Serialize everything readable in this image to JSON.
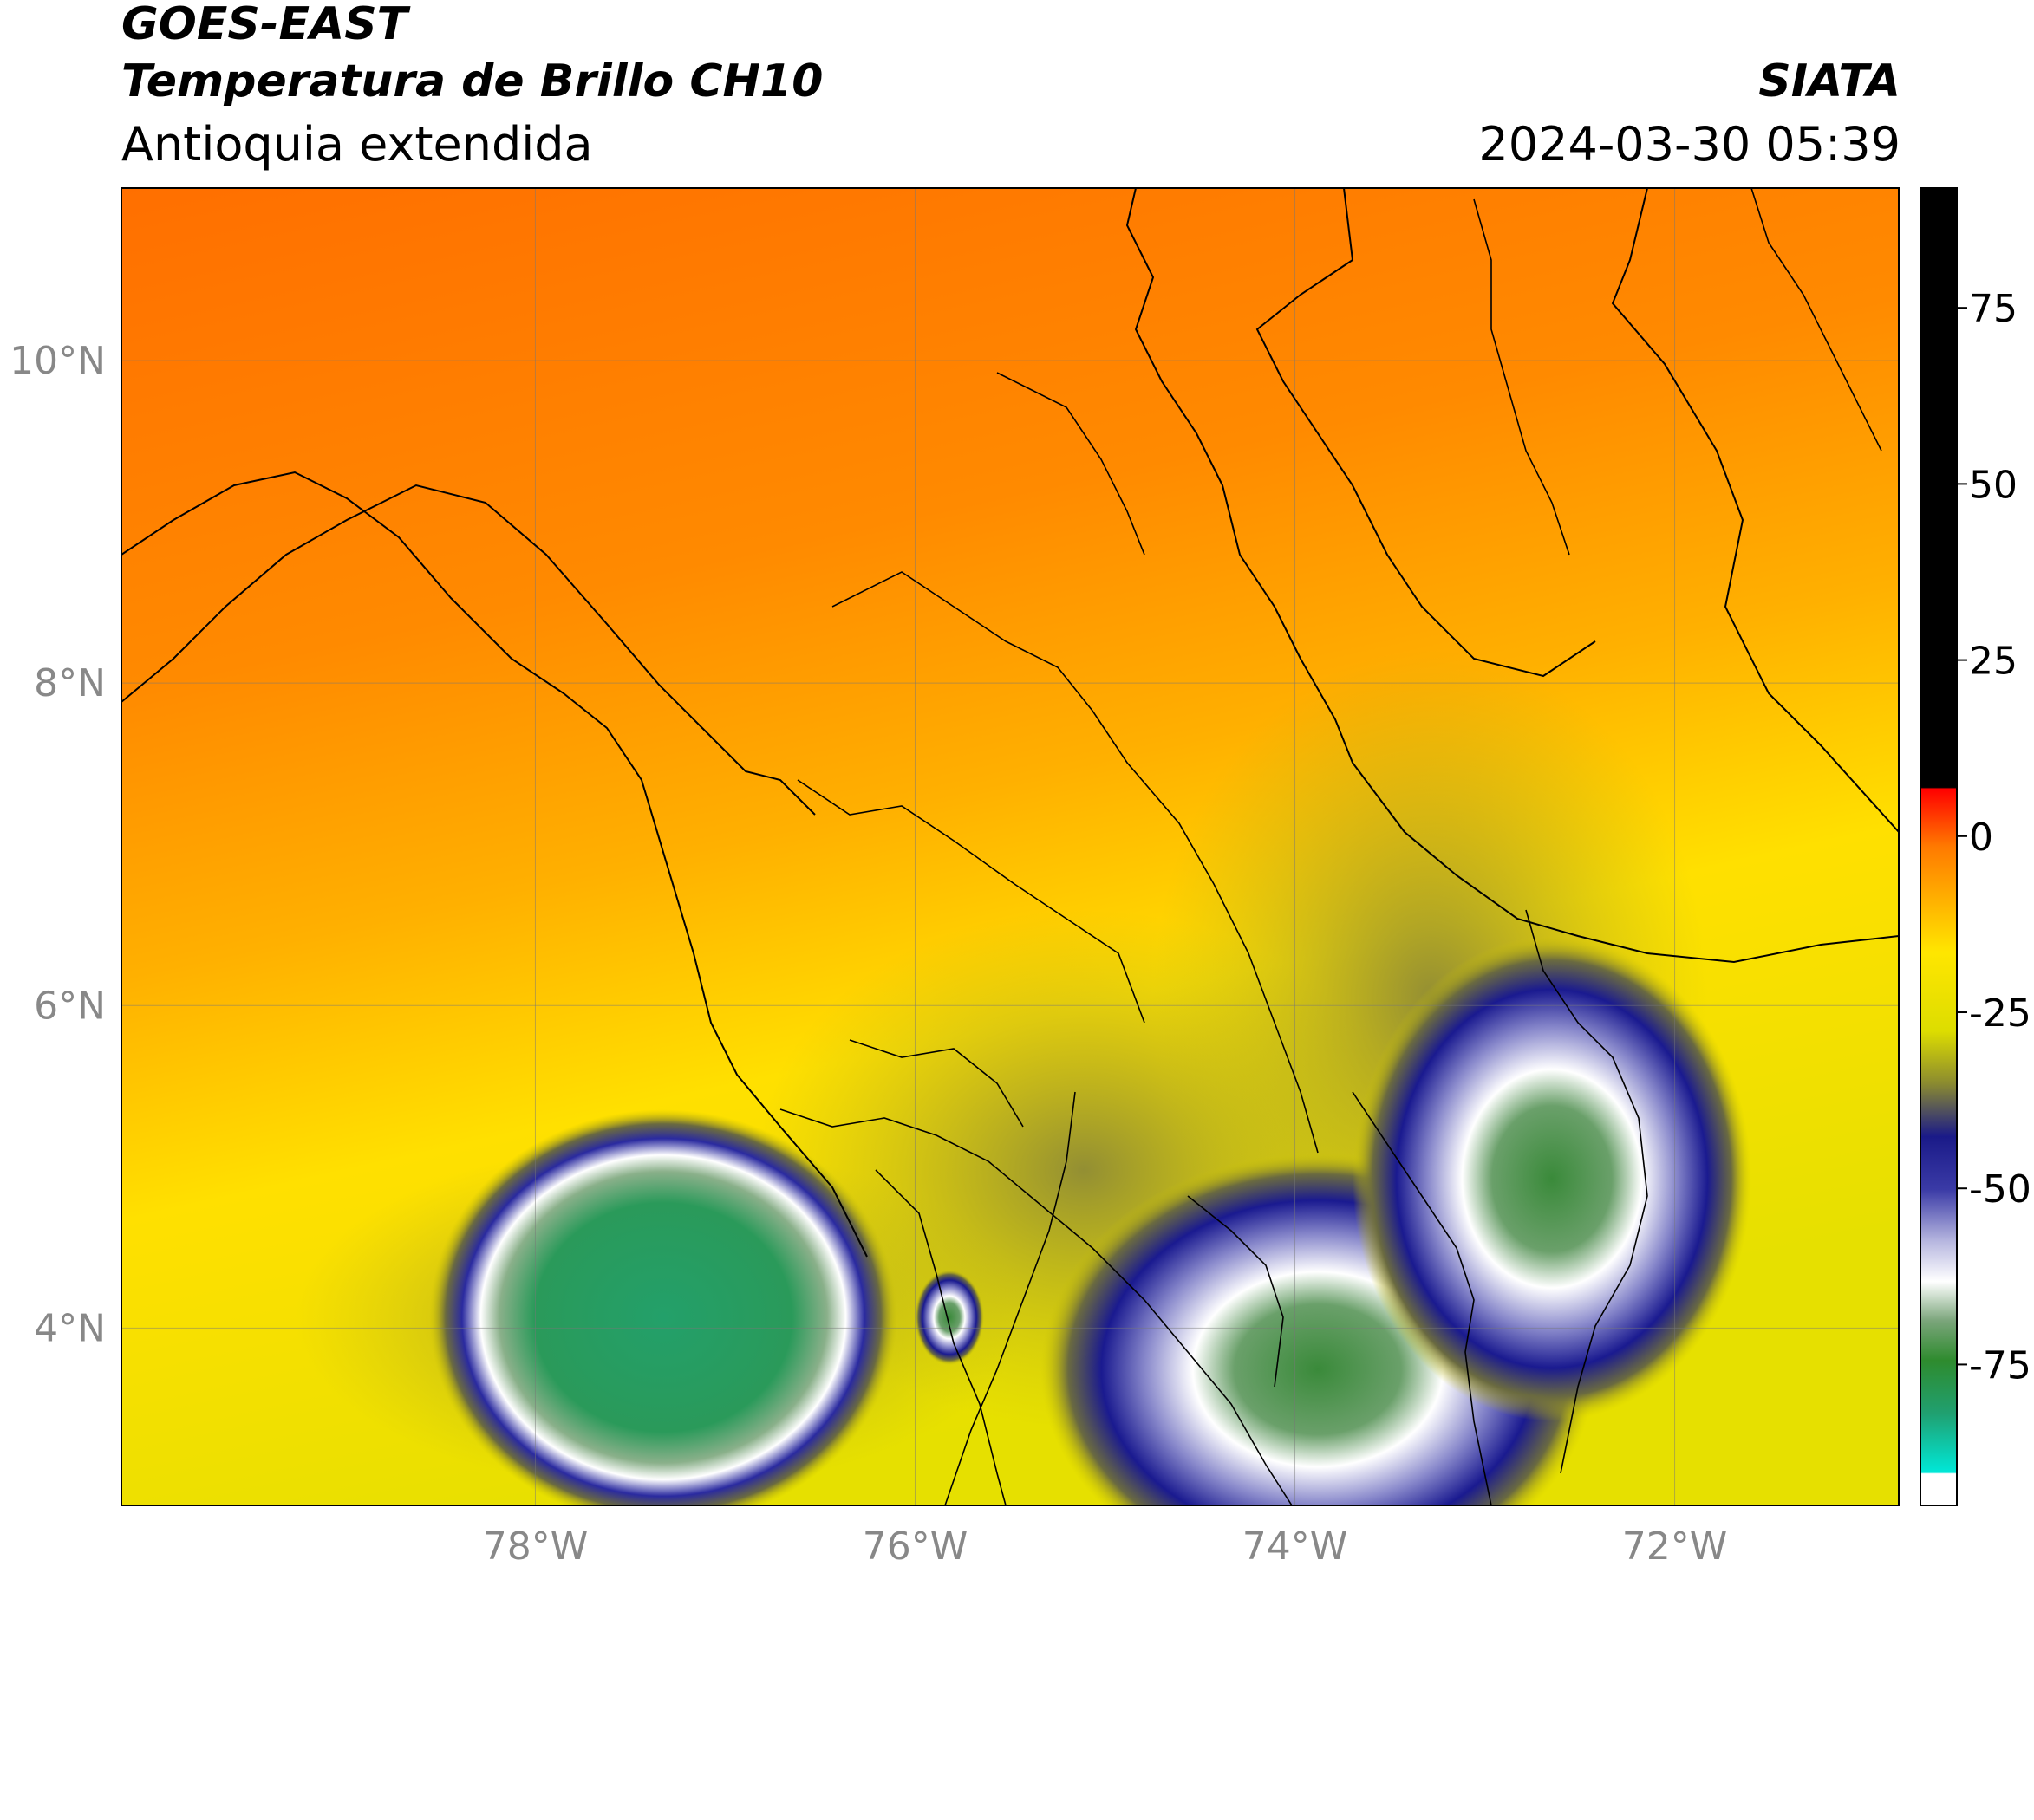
{
  "header": {
    "satellite": "GOES-EAST",
    "product": "Temperatura de Brillo CH10",
    "region": "Antioquia extendida",
    "source": "SIATA",
    "datetime": "2024-03-30 05:39"
  },
  "map": {
    "lat_ticks": [
      {
        "label": "10°N",
        "lat": 10
      },
      {
        "label": "8°N",
        "lat": 8
      },
      {
        "label": "6°N",
        "lat": 6
      },
      {
        "label": "4°N",
        "lat": 4
      }
    ],
    "lon_ticks": [
      {
        "label": "78°W",
        "lon": -78
      },
      {
        "label": "76°W",
        "lon": -76
      },
      {
        "label": "74°W",
        "lon": -74
      },
      {
        "label": "72°W",
        "lon": -72
      }
    ],
    "lat_range": [
      2.9,
      11.07
    ],
    "lon_range": [
      -80.18,
      -70.82
    ]
  },
  "colorbar": {
    "ticks": [
      {
        "label": "75",
        "value": 75
      },
      {
        "label": "50",
        "value": 50
      },
      {
        "label": "25",
        "value": 25
      },
      {
        "label": "0",
        "value": 0
      },
      {
        "label": "-25",
        "value": -25
      },
      {
        "label": "-50",
        "value": -50
      },
      {
        "label": "-75",
        "value": -75
      }
    ],
    "range": [
      -95,
      92
    ]
  }
}
